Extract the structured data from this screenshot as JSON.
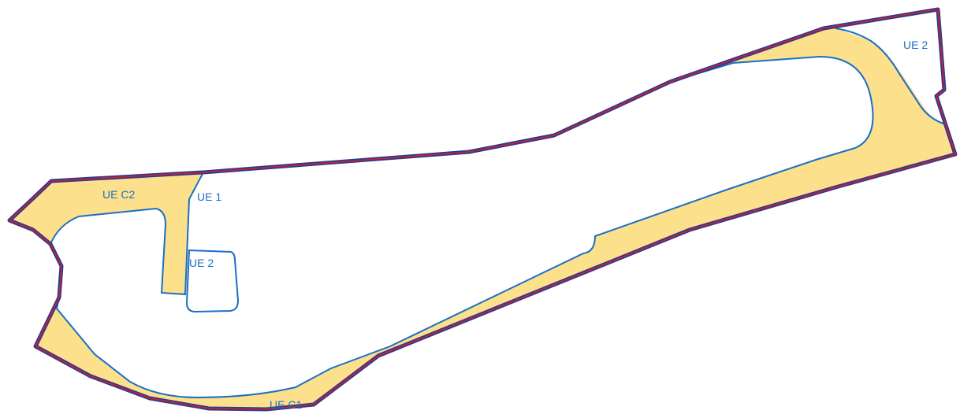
{
  "map": {
    "colors": {
      "outer_boundary_stroke": "#2b3a8f",
      "outer_boundary_inner_stroke": "#d0202a",
      "zone_fill": "#fde08c",
      "inner_boundary_stroke": "#1a6fc4",
      "label_color": "#1a6fc4",
      "background": "#ffffff"
    },
    "zones": {
      "ue_c1": "UE C1",
      "ue_c2": "UE C2",
      "ue_1": "UE 1",
      "ue_2_center": "UE 2",
      "ue_2_right": "UE 2"
    }
  }
}
